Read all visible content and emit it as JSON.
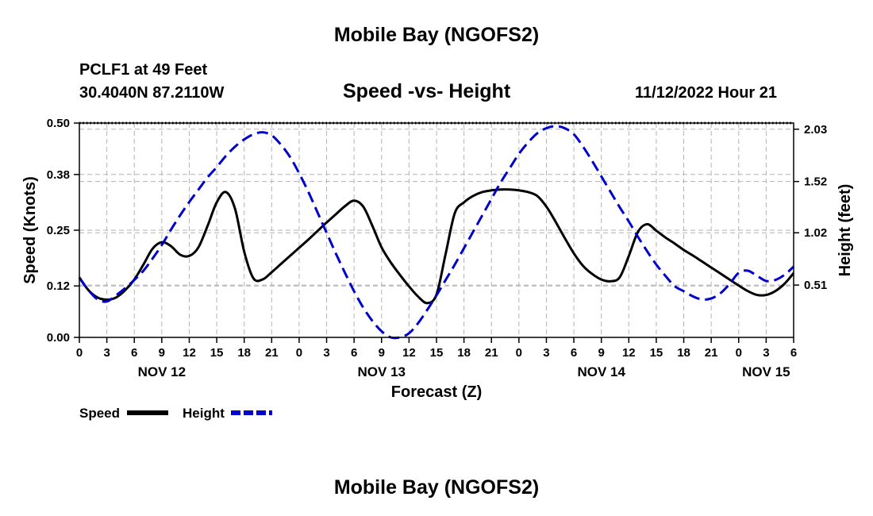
{
  "header": {
    "title": "Mobile Bay (NGOFS2)",
    "station": "PCLF1 at 49 Feet",
    "coords": "30.4040N  87.2110W",
    "chart_title": "Speed -vs- Height",
    "datetime": "11/12/2022 Hour 21"
  },
  "footer": {
    "title": "Mobile Bay (NGOFS2)"
  },
  "colors": {
    "speed": "#000000",
    "height": "#0000cc",
    "grid": "#b3b3b3"
  },
  "chart_data": {
    "type": "line",
    "title": "Speed -vs- Height",
    "xlabel": "Forecast (Z)",
    "ylabel_left": "Speed (Knots)",
    "ylabel_right": "Height (feet)",
    "x_range_hours": [
      0,
      78
    ],
    "x_ticks": [
      0,
      3,
      6,
      9,
      12,
      15,
      18,
      21,
      24,
      27,
      30,
      33,
      36,
      39,
      42,
      45,
      48,
      51,
      54,
      57,
      60,
      63,
      66,
      69,
      72,
      75,
      78
    ],
    "x_tick_labels": [
      "0",
      "3",
      "6",
      "9",
      "12",
      "15",
      "18",
      "21",
      "0",
      "3",
      "6",
      "9",
      "12",
      "15",
      "18",
      "21",
      "0",
      "3",
      "6",
      "9",
      "12",
      "15",
      "18",
      "21",
      "0",
      "3",
      "6"
    ],
    "date_labels": [
      {
        "hour": 9,
        "label": "NOV 12"
      },
      {
        "hour": 33,
        "label": "NOV 13"
      },
      {
        "hour": 57,
        "label": "NOV 14"
      },
      {
        "hour": 75,
        "label": "NOV 15"
      }
    ],
    "ylim_left": [
      0,
      0.5
    ],
    "yticks_left": [
      0.0,
      0.12,
      0.25,
      0.38,
      0.5
    ],
    "ytick_labels_left": [
      "0.00",
      "0.12",
      "0.25",
      "0.38",
      "0.50"
    ],
    "ylim_right": [
      0.0,
      2.09
    ],
    "yticks_right": [
      0.51,
      1.02,
      1.52,
      2.03
    ],
    "ytick_labels_right": [
      "0.51",
      "1.02",
      "1.52",
      "2.03"
    ],
    "legend": [
      {
        "name": "Speed",
        "style": "solid"
      },
      {
        "name": "Height",
        "style": "dashed"
      }
    ],
    "series": [
      {
        "name": "Speed",
        "axis": "left",
        "x": [
          0,
          1,
          2,
          3,
          4,
          5,
          6,
          7,
          8,
          9,
          10,
          11,
          12,
          13,
          14,
          15,
          16,
          17,
          18,
          19,
          20,
          21,
          22,
          23,
          24,
          25,
          26,
          27,
          28,
          29,
          30,
          31,
          32,
          33,
          34,
          35,
          36,
          37,
          38,
          39,
          40,
          41,
          42,
          43,
          44,
          45,
          46,
          47,
          48,
          49,
          50,
          51,
          52,
          53,
          54,
          55,
          56,
          57,
          58,
          59,
          60,
          61,
          62,
          63,
          64,
          65,
          66,
          67,
          68,
          69,
          70,
          71,
          72,
          73,
          74,
          75,
          76,
          77,
          78
        ],
        "values": [
          0.14,
          0.11,
          0.093,
          0.088,
          0.093,
          0.11,
          0.135,
          0.17,
          0.207,
          0.222,
          0.213,
          0.193,
          0.19,
          0.21,
          0.26,
          0.315,
          0.339,
          0.3,
          0.2,
          0.138,
          0.135,
          0.152,
          0.171,
          0.19,
          0.209,
          0.228,
          0.248,
          0.268,
          0.287,
          0.306,
          0.319,
          0.305,
          0.26,
          0.21,
          0.175,
          0.146,
          0.119,
          0.095,
          0.08,
          0.1,
          0.195,
          0.29,
          0.315,
          0.33,
          0.339,
          0.343,
          0.345,
          0.345,
          0.343,
          0.339,
          0.33,
          0.305,
          0.27,
          0.232,
          0.196,
          0.167,
          0.148,
          0.135,
          0.131,
          0.14,
          0.19,
          0.246,
          0.264,
          0.249,
          0.233,
          0.219,
          0.204,
          0.191,
          0.177,
          0.163,
          0.149,
          0.135,
          0.121,
          0.108,
          0.099,
          0.099,
          0.108,
          0.125,
          0.15
        ]
      },
      {
        "name": "Height",
        "axis": "right",
        "x": [
          0,
          1,
          2,
          3,
          4,
          5,
          6,
          7,
          8,
          9,
          10,
          11,
          12,
          13,
          14,
          15,
          16,
          17,
          18,
          19,
          20,
          21,
          22,
          23,
          24,
          25,
          26,
          27,
          28,
          29,
          30,
          31,
          32,
          33,
          34,
          35,
          36,
          37,
          38,
          39,
          40,
          41,
          42,
          43,
          44,
          45,
          46,
          47,
          48,
          49,
          50,
          51,
          52,
          53,
          54,
          55,
          56,
          57,
          58,
          59,
          60,
          61,
          62,
          63,
          64,
          65,
          66,
          67,
          68,
          69,
          70,
          71,
          72,
          73,
          74,
          75,
          76,
          77,
          78
        ],
        "values": [
          0.58,
          0.46,
          0.37,
          0.35,
          0.41,
          0.48,
          0.56,
          0.65,
          0.77,
          0.9,
          1.05,
          1.19,
          1.32,
          1.44,
          1.56,
          1.66,
          1.77,
          1.86,
          1.93,
          1.98,
          2.0,
          1.97,
          1.88,
          1.76,
          1.6,
          1.42,
          1.22,
          1.02,
          0.82,
          0.63,
          0.45,
          0.29,
          0.16,
          0.06,
          0.0,
          0.0,
          0.04,
          0.14,
          0.27,
          0.41,
          0.56,
          0.71,
          0.87,
          1.03,
          1.19,
          1.35,
          1.51,
          1.65,
          1.79,
          1.9,
          1.99,
          2.04,
          2.06,
          2.04,
          1.98,
          1.86,
          1.72,
          1.57,
          1.42,
          1.27,
          1.13,
          0.98,
          0.84,
          0.71,
          0.6,
          0.5,
          0.45,
          0.4,
          0.37,
          0.38,
          0.43,
          0.52,
          0.63,
          0.65,
          0.6,
          0.55,
          0.56,
          0.61,
          0.69
        ]
      }
    ]
  }
}
